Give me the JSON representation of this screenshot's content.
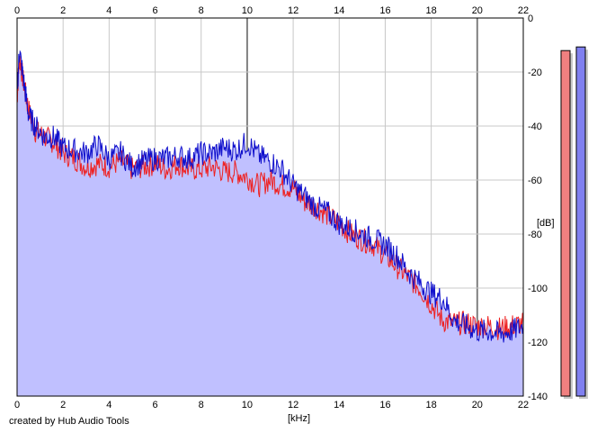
{
  "credit": "created by Hub Audio Tools",
  "colors": {
    "left_channel": "#ee2222",
    "right_channel": "#1010cc",
    "fill": "#c0c0ff",
    "grid": "#c8c8c8",
    "major_grid": "#808080",
    "meter_left": "#f08080",
    "meter_right": "#8080f0"
  },
  "chart_data": {
    "type": "line",
    "title": "",
    "xlabel": "[kHz]",
    "ylabel": "[dB]",
    "xlim": [
      0,
      22
    ],
    "ylim": [
      -140,
      0
    ],
    "x_ticks": [
      "0",
      "2",
      "4",
      "6",
      "8",
      "10",
      "12",
      "14",
      "16",
      "18",
      "20",
      "22"
    ],
    "y_ticks": [
      "0",
      "-20",
      "-40",
      "-60",
      "-80",
      "-100",
      "-120",
      "-140"
    ],
    "grid": true,
    "legend": "none",
    "series": [
      {
        "color": "#ee2222",
        "x": [
          0,
          0.1,
          0.3,
          0.5,
          0.8,
          1.2,
          1.6,
          2.0,
          2.5,
          3.0,
          3.5,
          4.0,
          4.5,
          5.0,
          5.5,
          6.0,
          6.5,
          7.0,
          7.5,
          8.0,
          8.5,
          9.0,
          9.5,
          10.0,
          10.5,
          11.0,
          11.5,
          12.0,
          12.5,
          13.0,
          13.5,
          14.0,
          14.5,
          15.0,
          15.5,
          16.0,
          16.5,
          17.0,
          17.5,
          18.0,
          18.5,
          19.0,
          19.5,
          20.0,
          20.5,
          21.0,
          21.5,
          22.0
        ],
        "y": [
          -30,
          -14,
          -25,
          -34,
          -42,
          -44,
          -46,
          -50,
          -52,
          -55,
          -54,
          -55,
          -53,
          -56,
          -55,
          -54,
          -56,
          -54,
          -56,
          -56,
          -55,
          -57,
          -57,
          -59,
          -62,
          -60,
          -62,
          -63,
          -68,
          -70,
          -73,
          -76,
          -80,
          -82,
          -84,
          -88,
          -92,
          -96,
          -100,
          -106,
          -112,
          -113,
          -113,
          -114,
          -114,
          -115,
          -114,
          -113
        ]
      },
      {
        "color": "#1010cc",
        "x": [
          0,
          0.1,
          0.3,
          0.5,
          0.8,
          1.2,
          1.6,
          2.0,
          2.5,
          3.0,
          3.5,
          4.0,
          4.5,
          5.0,
          5.5,
          6.0,
          6.5,
          7.0,
          7.5,
          8.0,
          8.5,
          9.0,
          9.5,
          10.0,
          10.5,
          11.0,
          11.5,
          12.0,
          12.5,
          13.0,
          13.5,
          14.0,
          14.5,
          15.0,
          15.5,
          16.0,
          16.5,
          17.0,
          17.5,
          18.0,
          18.5,
          19.0,
          19.5,
          20.0,
          20.5,
          21.0,
          21.5,
          22.0
        ],
        "y": [
          -28,
          -12,
          -24,
          -36,
          -40,
          -44,
          -44,
          -48,
          -49,
          -50,
          -47,
          -52,
          -50,
          -55,
          -53,
          -52,
          -52,
          -51,
          -52,
          -50,
          -50,
          -48,
          -49,
          -46,
          -51,
          -53,
          -56,
          -62,
          -66,
          -70,
          -72,
          -76,
          -78,
          -80,
          -82,
          -84,
          -88,
          -94,
          -98,
          -102,
          -104,
          -112,
          -114,
          -116,
          -116,
          -117,
          -116,
          -114
        ]
      }
    ],
    "meters": {
      "left": 0.95,
      "right": 0.96
    }
  }
}
